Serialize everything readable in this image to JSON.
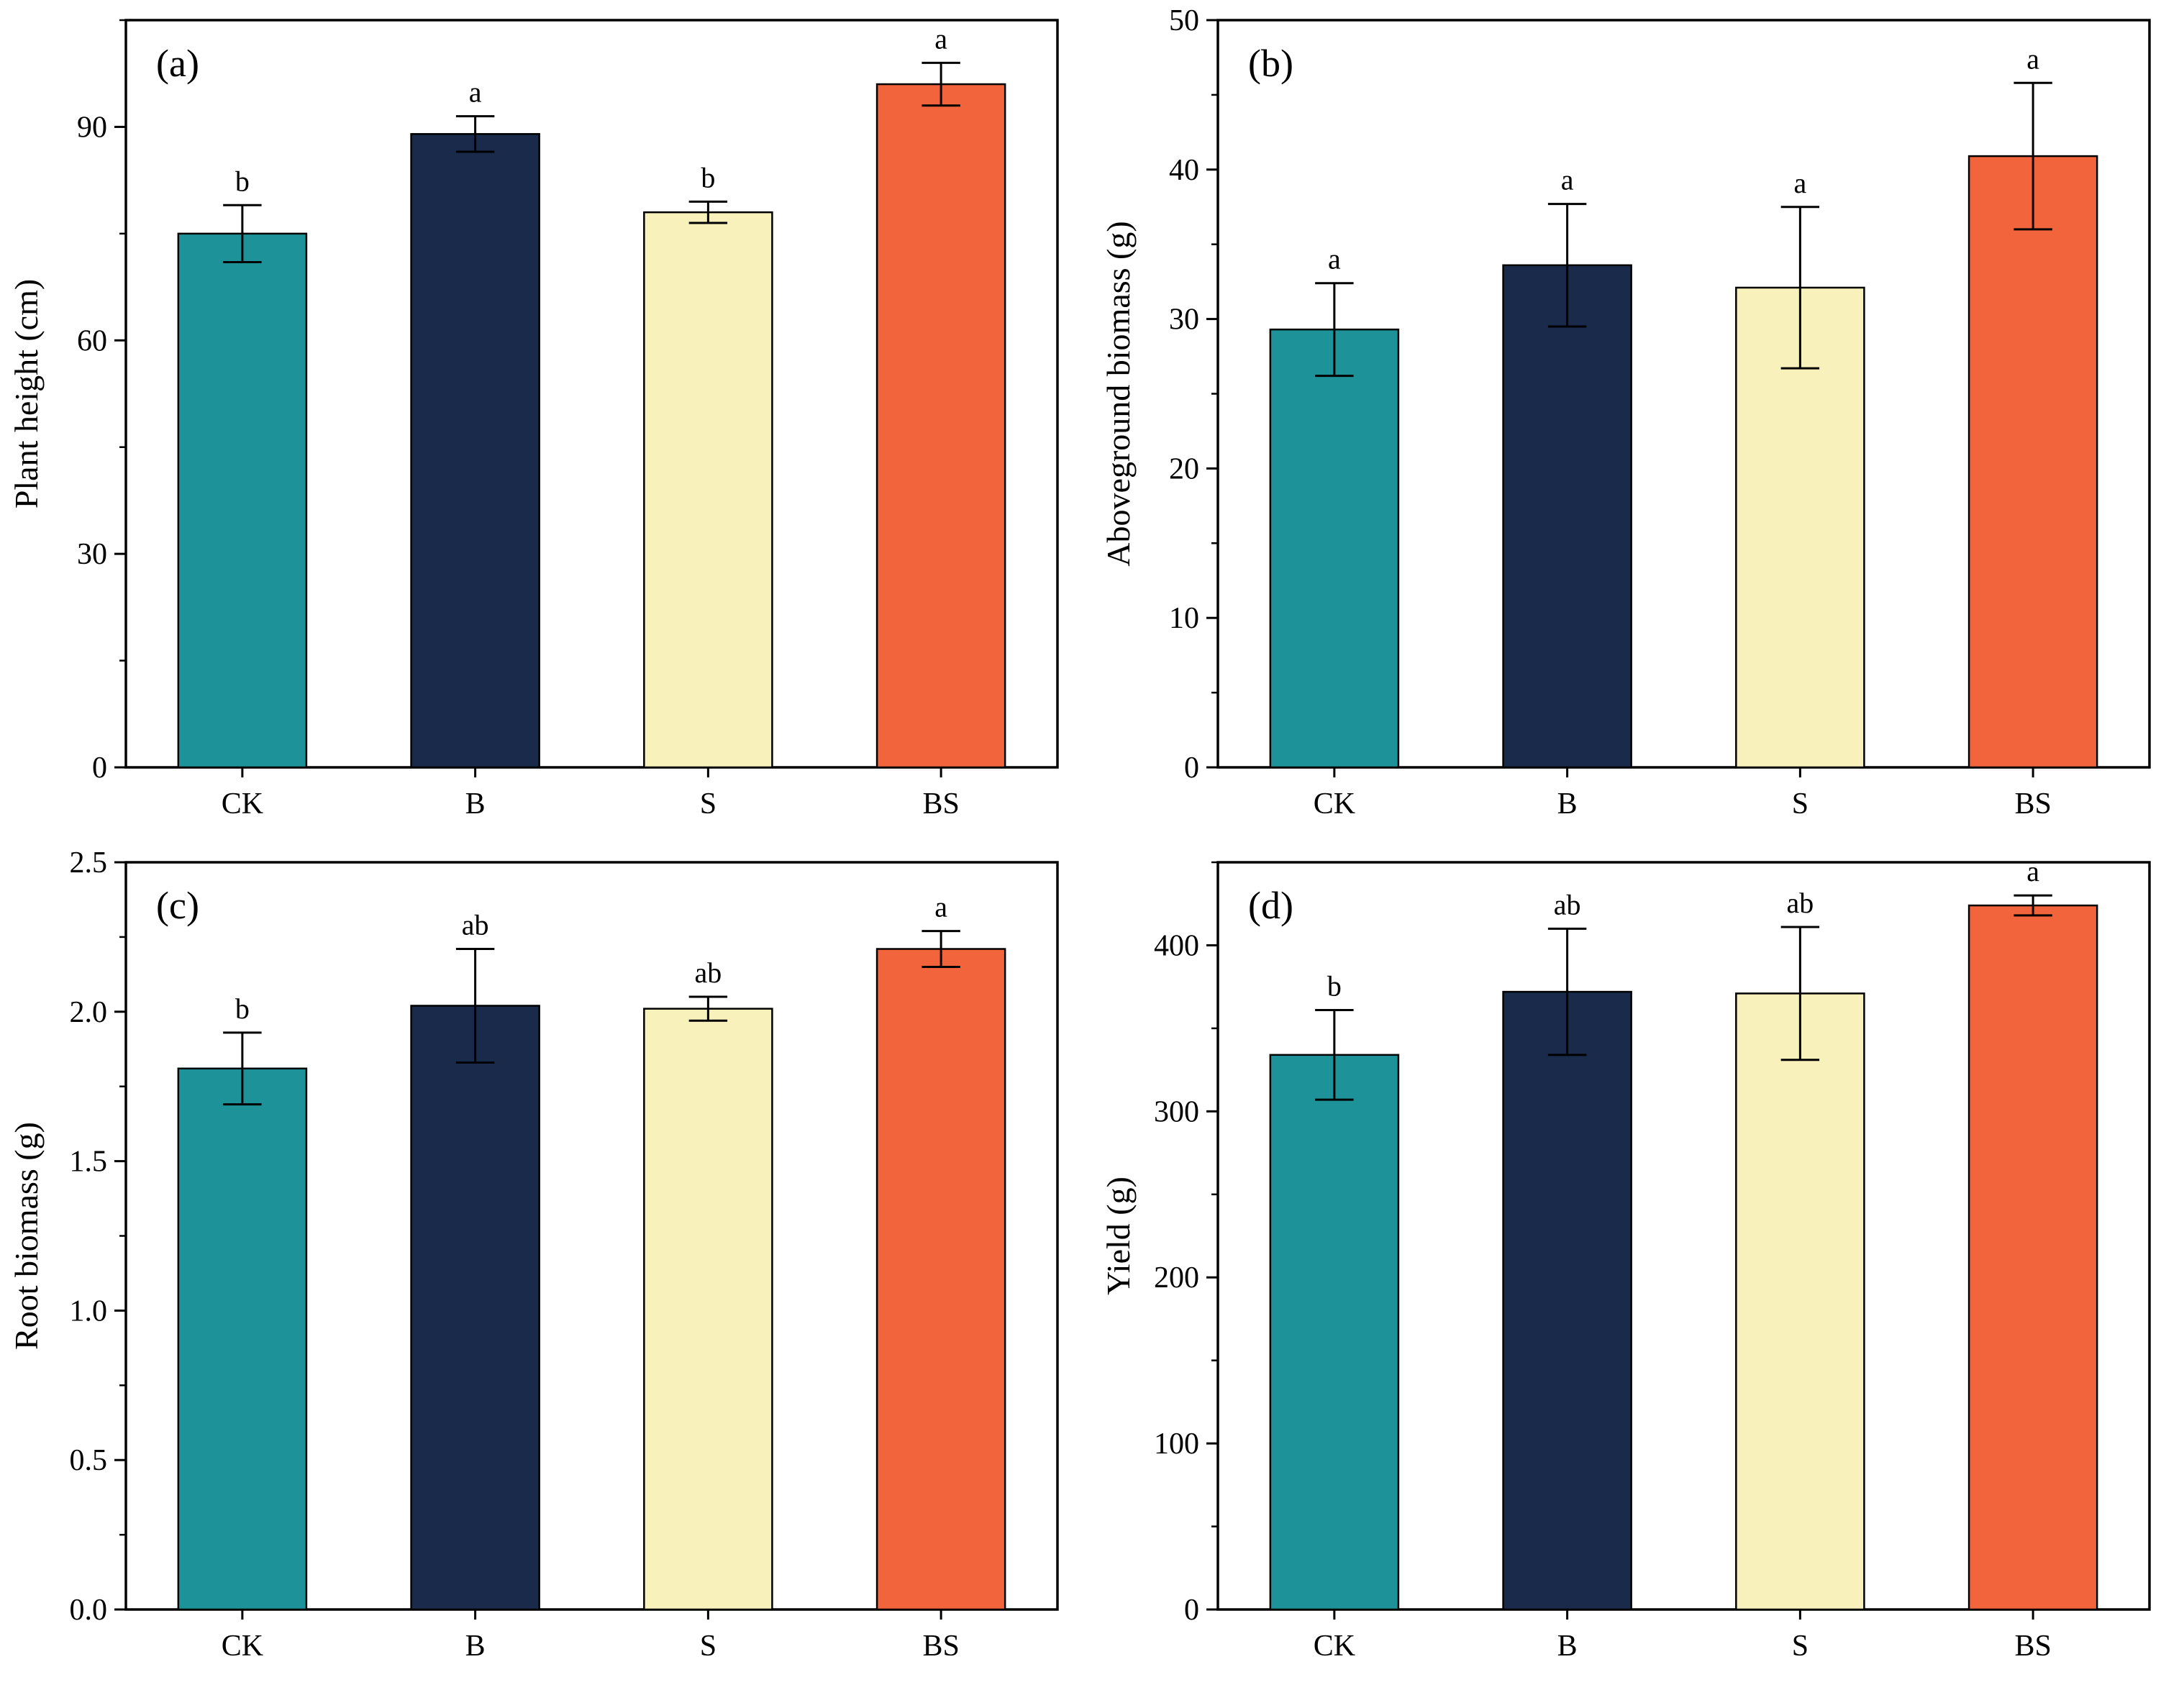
{
  "figure": {
    "background": "#ffffff",
    "bar_colors": [
      "#1d9399",
      "#192a4a",
      "#f8f1bb",
      "#f2653c"
    ],
    "bar_edge_color": "#000000",
    "axis_color": "#000000",
    "categories": [
      "CK",
      "B",
      "S",
      "BS"
    ]
  },
  "chart_data": [
    {
      "type": "bar",
      "panel_label": "(a)",
      "ylabel": "Plant height (cm)",
      "categories": [
        "CK",
        "B",
        "S",
        "BS"
      ],
      "values": [
        75,
        89,
        78,
        96
      ],
      "errors": [
        4,
        2.5,
        1.5,
        3
      ],
      "letters": [
        "b",
        "a",
        "b",
        "a"
      ],
      "ylim": [
        0,
        105
      ],
      "yticks": [
        0,
        30,
        60,
        90
      ],
      "minor_step": 15,
      "tick_decimals": 0,
      "grid": false,
      "legend": "none"
    },
    {
      "type": "bar",
      "panel_label": "(b)",
      "ylabel": "Aboveground biomass (g)",
      "categories": [
        "CK",
        "B",
        "S",
        "BS"
      ],
      "values": [
        29.3,
        33.6,
        32.1,
        40.9
      ],
      "errors": [
        3.1,
        4.1,
        5.4,
        4.9
      ],
      "letters": [
        "a",
        "a",
        "a",
        "a"
      ],
      "ylim": [
        0,
        50
      ],
      "yticks": [
        0,
        10,
        20,
        30,
        40,
        50
      ],
      "minor_step": 5,
      "tick_decimals": 0,
      "grid": false,
      "legend": "none"
    },
    {
      "type": "bar",
      "panel_label": "(c)",
      "ylabel": "Root biomass (g)",
      "categories": [
        "CK",
        "B",
        "S",
        "BS"
      ],
      "values": [
        1.81,
        2.02,
        2.01,
        2.21
      ],
      "errors": [
        0.12,
        0.19,
        0.04,
        0.06
      ],
      "letters": [
        "b",
        "ab",
        "ab",
        "a"
      ],
      "ylim": [
        0,
        2.5
      ],
      "yticks": [
        0,
        0.5,
        1.0,
        1.5,
        2.0,
        2.5
      ],
      "minor_step": 0.25,
      "tick_decimals": 1,
      "grid": false,
      "legend": "none"
    },
    {
      "type": "bar",
      "panel_label": "(d)",
      "ylabel": "Yield (g)",
      "categories": [
        "CK",
        "B",
        "S",
        "BS"
      ],
      "values": [
        334,
        372,
        371,
        424
      ],
      "errors": [
        27,
        38,
        40,
        6
      ],
      "letters": [
        "b",
        "ab",
        "ab",
        "a"
      ],
      "ylim": [
        0,
        450
      ],
      "yticks": [
        0,
        100,
        200,
        300,
        400
      ],
      "minor_step": 50,
      "tick_decimals": 0,
      "grid": false,
      "legend": "none"
    }
  ]
}
